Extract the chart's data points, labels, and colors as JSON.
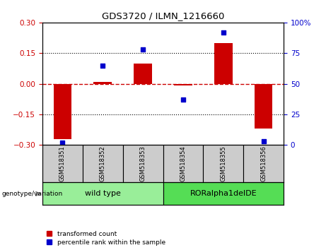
{
  "title": "GDS3720 / ILMN_1216660",
  "samples": [
    "GSM518351",
    "GSM518352",
    "GSM518353",
    "GSM518354",
    "GSM518355",
    "GSM518356"
  ],
  "transformed_counts": [
    -0.27,
    0.01,
    0.1,
    -0.01,
    0.2,
    -0.22
  ],
  "percentile_ranks": [
    2,
    65,
    78,
    37,
    92,
    3
  ],
  "ylim_left": [
    -0.3,
    0.3
  ],
  "ylim_right": [
    0,
    100
  ],
  "yticks_left": [
    -0.3,
    -0.15,
    0.0,
    0.15,
    0.3
  ],
  "yticks_right": [
    0,
    25,
    50,
    75,
    100
  ],
  "bar_color": "#cc0000",
  "dot_color": "#0000cc",
  "hline_color": "#cc0000",
  "grid_color": "#000000",
  "sample_box_color": "#cccccc",
  "group1_color": "#99ee99",
  "group2_color": "#55dd55",
  "group1_label": "wild type",
  "group2_label": "RORalpha1delDE",
  "group1_range": [
    0,
    2
  ],
  "group2_range": [
    3,
    5
  ],
  "legend_entries": [
    {
      "label": "transformed count",
      "color": "#cc0000"
    },
    {
      "label": "percentile rank within the sample",
      "color": "#0000cc"
    }
  ],
  "genotype_label": "genotype/variation"
}
